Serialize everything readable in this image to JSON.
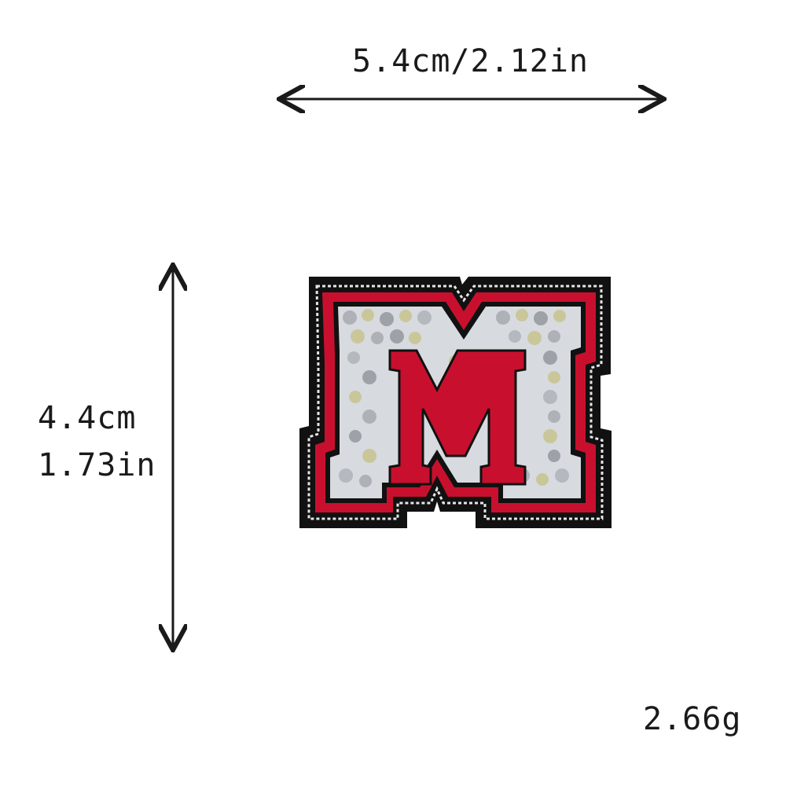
{
  "dimensions": {
    "width_label": "5.4cm/2.12in",
    "height_label_cm": "4.4cm",
    "height_label_in": "1.73in",
    "weight_label": "2.66g"
  },
  "product": {
    "letter": "M",
    "colors": {
      "backing": "#111111",
      "outline_red": "#c8102e",
      "stitch": "#e6e6e6",
      "rhinestone_silver": "#c9ccd1",
      "rhinestone_gold": "#c9c79a"
    }
  }
}
